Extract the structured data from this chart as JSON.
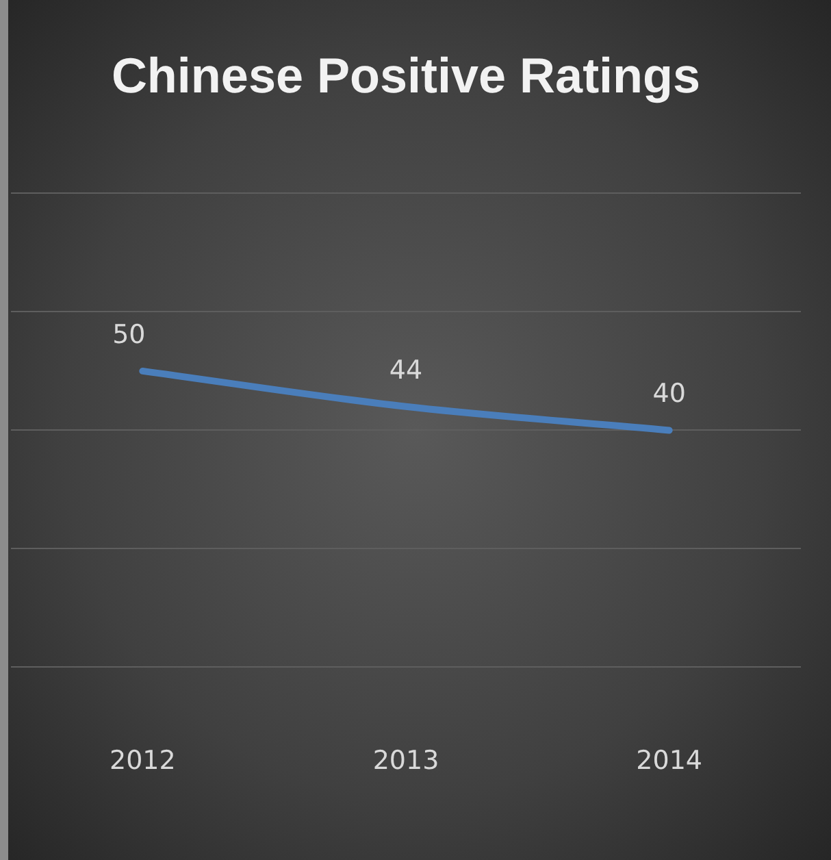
{
  "chart_data": {
    "type": "line",
    "title": "Chinese Positive Ratings",
    "categories": [
      "2012",
      "2013",
      "2014"
    ],
    "series": [
      {
        "color": "#4a7ebb",
        "values": [
          50,
          44,
          40
        ]
      }
    ],
    "ylim": [
      0,
      80
    ],
    "yticks": [
      {
        "value": 0,
        "label": null
      },
      {
        "value": 20,
        "label": null
      },
      {
        "value": 40,
        "label": null
      },
      {
        "value": 60,
        "label": null
      },
      {
        "value": 80,
        "label": null
      }
    ],
    "grid": "y",
    "tick_labels": "x",
    "data_labels": true,
    "marker": "none"
  }
}
